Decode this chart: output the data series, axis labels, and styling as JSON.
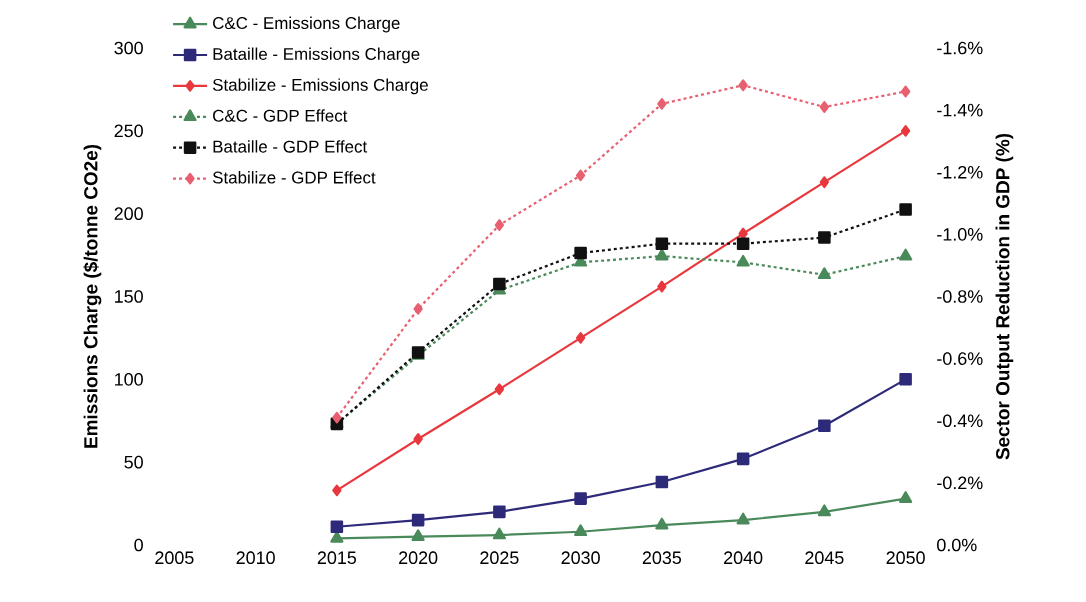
{
  "chart_data": {
    "type": "line",
    "ylabel": "Emissions Charge ($/tonne CO2e)",
    "y2label": "Sector Output Reduction in GDP (%)",
    "categories": [
      "2005",
      "2010",
      "2015",
      "2020",
      "2025",
      "2030",
      "2035",
      "2040",
      "2045",
      "2050"
    ],
    "ylim": [
      0,
      300
    ],
    "yticks": [
      0,
      50,
      100,
      150,
      200,
      250,
      300
    ],
    "y2lim": [
      0,
      -1.6
    ],
    "y2ticks": [
      {
        "value": 0,
        "label": "0.0%"
      },
      {
        "value": -0.2,
        "label": "-0.2%"
      },
      {
        "value": -0.4,
        "label": "-0.4%"
      },
      {
        "value": -0.6,
        "label": "-0.6%"
      },
      {
        "value": -0.8,
        "label": "-0.8%"
      },
      {
        "value": -1.0,
        "label": "-1.0%"
      },
      {
        "value": -1.2,
        "label": "-1.2%"
      },
      {
        "value": -1.4,
        "label": "-1.4%"
      },
      {
        "value": -1.6,
        "label": "-1.6%"
      }
    ],
    "grid": false,
    "legend": "top left",
    "series": [
      {
        "name": "C&C - Emissions Charge",
        "color": "#4a8a5a",
        "marker": "triangle",
        "line_style": "solid",
        "values": [
          null,
          null,
          4,
          5,
          6,
          8,
          12,
          15,
          20,
          28
        ]
      },
      {
        "name": "Bataille - Emissions Charge",
        "color": "#2e2a7a",
        "marker": "square",
        "line_style": "solid",
        "values": [
          null,
          null,
          11,
          15,
          20,
          28,
          38,
          52,
          72,
          100
        ]
      },
      {
        "name": "Stabilize - Emissions Charge",
        "color": "#e8383d",
        "marker": "diamond",
        "line_style": "solid",
        "values": [
          null,
          null,
          33,
          64,
          94,
          125,
          156,
          188,
          219,
          250
        ]
      },
      {
        "name": "C&C - GDP Effect",
        "color": "#4a8a5a",
        "marker": "triangle",
        "line_style": "dotted",
        "axis": "y2",
        "values": [
          null,
          null,
          -0.39,
          -0.61,
          -0.82,
          -0.91,
          -0.93,
          -0.91,
          -0.87,
          -0.93
        ]
      },
      {
        "name": "Bataille - GDP Effect",
        "color": "#111111",
        "marker": "square",
        "line_style": "dotted",
        "axis": "y2",
        "values": [
          null,
          null,
          -0.39,
          -0.62,
          -0.84,
          -0.94,
          -0.97,
          -0.97,
          -0.99,
          -1.08
        ]
      },
      {
        "name": "Stabilize - GDP Effect",
        "color": "#e86070",
        "marker": "diamond",
        "line_style": "dotted",
        "axis": "y2",
        "values": [
          null,
          null,
          -0.41,
          -0.76,
          -1.03,
          -1.19,
          -1.42,
          -1.48,
          -1.41,
          -1.46
        ]
      }
    ]
  }
}
